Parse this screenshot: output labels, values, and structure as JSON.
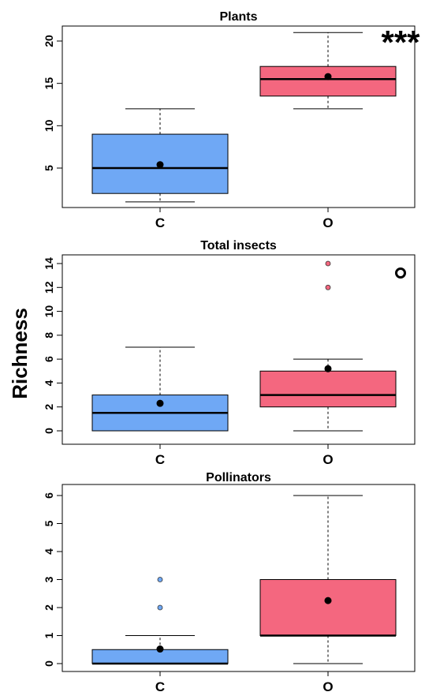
{
  "figure": {
    "ylabel": "Richness",
    "colors": {
      "C": "#6fa8f5",
      "O": "#f4677f",
      "mean": "#000000",
      "axis": "#000000"
    }
  },
  "chart_data": [
    {
      "type": "boxplot",
      "title": "Plants",
      "categories": [
        "C",
        "O"
      ],
      "ylim": [
        0,
        22
      ],
      "yticks": [
        5,
        10,
        15,
        20
      ],
      "significance": "***",
      "boxes": [
        {
          "category": "C",
          "whisker_low": 1,
          "q1": 2,
          "median": 5,
          "q3": 9,
          "whisker_high": 12,
          "mean": 5.4,
          "outliers": []
        },
        {
          "category": "O",
          "whisker_low": 12,
          "q1": 13.5,
          "median": 15.5,
          "q3": 17,
          "whisker_high": 21,
          "mean": 15.8,
          "outliers": []
        }
      ]
    },
    {
      "type": "boxplot",
      "title": "Total insects",
      "categories": [
        "C",
        "O"
      ],
      "ylim": [
        0,
        14
      ],
      "yticks": [
        0,
        2,
        4,
        6,
        8,
        10,
        12,
        14
      ],
      "significance": "o",
      "boxes": [
        {
          "category": "C",
          "whisker_low": 0,
          "q1": 0,
          "median": 1.5,
          "q3": 3,
          "whisker_high": 7,
          "mean": 2.3,
          "outliers": []
        },
        {
          "category": "O",
          "whisker_low": 0,
          "q1": 2,
          "median": 3,
          "q3": 5,
          "whisker_high": 6,
          "mean": 5.2,
          "outliers": [
            12,
            14
          ]
        }
      ]
    },
    {
      "type": "boxplot",
      "title": "Pollinators",
      "categories": [
        "C",
        "O"
      ],
      "ylim": [
        0,
        6
      ],
      "yticks": [
        0,
        1,
        2,
        3,
        4,
        5,
        6
      ],
      "significance": "",
      "boxes": [
        {
          "category": "C",
          "whisker_low": 0,
          "q1": 0,
          "median": 0,
          "q3": 0.5,
          "whisker_high": 1,
          "mean": 0.52,
          "outliers": [
            2,
            3
          ]
        },
        {
          "category": "O",
          "whisker_low": 0,
          "q1": 1,
          "median": 1,
          "q3": 3,
          "whisker_high": 6,
          "mean": 2.25,
          "outliers": []
        }
      ]
    }
  ]
}
